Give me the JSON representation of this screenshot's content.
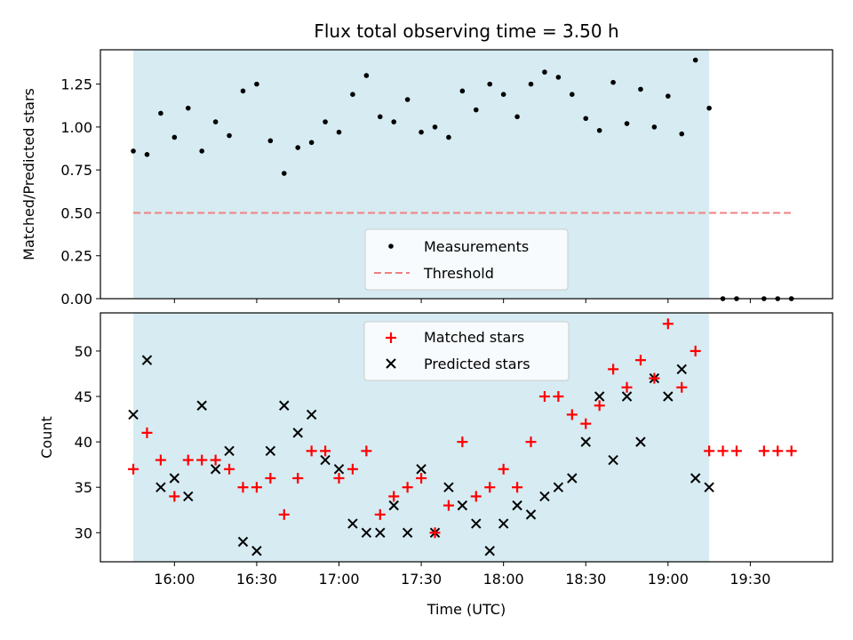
{
  "chart_data": [
    {
      "type": "scatter",
      "title": "Flux total observing time = 3.50 h",
      "xlabel": "",
      "ylabel": "Matched/Predicted stars",
      "ylim": [
        0,
        1.45
      ],
      "yticks": [
        "0.00",
        "0.25",
        "0.50",
        "0.75",
        "1.00",
        "1.25"
      ],
      "shaded_span": [
        "15:45",
        "19:15"
      ],
      "shade_color": "#add8e6",
      "legend": {
        "position": "lower-center",
        "entries": [
          "Measurements",
          "Threshold"
        ]
      },
      "series": [
        {
          "name": "Measurements",
          "marker": "dot",
          "color": "#000000",
          "points": [
            [
              "15:45",
              0.86
            ],
            [
              "15:50",
              0.84
            ],
            [
              "15:55",
              1.08
            ],
            [
              "16:00",
              0.94
            ],
            [
              "16:05",
              1.11
            ],
            [
              "16:10",
              0.86
            ],
            [
              "16:15",
              1.03
            ],
            [
              "16:20",
              0.95
            ],
            [
              "16:25",
              1.21
            ],
            [
              "16:30",
              1.25
            ],
            [
              "16:35",
              0.92
            ],
            [
              "16:40",
              0.73
            ],
            [
              "16:45",
              0.88
            ],
            [
              "16:50",
              0.91
            ],
            [
              "16:55",
              1.03
            ],
            [
              "17:00",
              0.97
            ],
            [
              "17:05",
              1.19
            ],
            [
              "17:10",
              1.3
            ],
            [
              "17:15",
              1.06
            ],
            [
              "17:20",
              1.03
            ],
            [
              "17:25",
              1.16
            ],
            [
              "17:30",
              0.97
            ],
            [
              "17:35",
              1.0
            ],
            [
              "17:40",
              0.94
            ],
            [
              "17:45",
              1.21
            ],
            [
              "17:50",
              1.1
            ],
            [
              "17:55",
              1.25
            ],
            [
              "18:00",
              1.19
            ],
            [
              "18:05",
              1.06
            ],
            [
              "18:10",
              1.25
            ],
            [
              "18:15",
              1.32
            ],
            [
              "18:20",
              1.29
            ],
            [
              "18:25",
              1.19
            ],
            [
              "18:30",
              1.05
            ],
            [
              "18:35",
              0.98
            ],
            [
              "18:40",
              1.26
            ],
            [
              "18:45",
              1.02
            ],
            [
              "18:50",
              1.22
            ],
            [
              "18:55",
              1.0
            ],
            [
              "19:00",
              1.18
            ],
            [
              "19:05",
              0.96
            ],
            [
              "19:10",
              1.39
            ],
            [
              "19:15",
              1.11
            ],
            [
              "19:20",
              0.0
            ],
            [
              "19:25",
              0.0
            ],
            [
              "19:35",
              0.0
            ],
            [
              "19:40",
              0.0
            ],
            [
              "19:45",
              0.0
            ]
          ]
        },
        {
          "name": "Threshold",
          "style": "dashed",
          "color": "#f08080",
          "x": [
            "15:45",
            "19:45"
          ],
          "y": 0.5
        }
      ]
    },
    {
      "type": "scatter",
      "title": "",
      "xlabel": "Time (UTC)",
      "ylabel": "Count",
      "ylim": [
        26.8,
        54.2
      ],
      "yticks": [
        "30",
        "35",
        "40",
        "45",
        "50"
      ],
      "xticks": [
        "16:00",
        "16:30",
        "17:00",
        "17:30",
        "18:00",
        "18:30",
        "19:00",
        "19:30"
      ],
      "xlim": [
        "15:33",
        "20:00"
      ],
      "shaded_span": [
        "15:45",
        "19:15"
      ],
      "legend": {
        "position": "top-center",
        "entries": [
          "Matched stars",
          "Predicted stars"
        ]
      },
      "series": [
        {
          "name": "Matched stars",
          "marker": "plus",
          "color": "#ff0000",
          "points": [
            [
              "15:45",
              37
            ],
            [
              "15:50",
              41
            ],
            [
              "15:55",
              38
            ],
            [
              "16:00",
              34
            ],
            [
              "16:05",
              38
            ],
            [
              "16:10",
              38
            ],
            [
              "16:15",
              38
            ],
            [
              "16:20",
              37
            ],
            [
              "16:25",
              35
            ],
            [
              "16:30",
              35
            ],
            [
              "16:35",
              36
            ],
            [
              "16:40",
              32
            ],
            [
              "16:45",
              36
            ],
            [
              "16:50",
              39
            ],
            [
              "16:55",
              39
            ],
            [
              "17:00",
              36
            ],
            [
              "17:05",
              37
            ],
            [
              "17:10",
              39
            ],
            [
              "17:15",
              32
            ],
            [
              "17:20",
              34
            ],
            [
              "17:25",
              35
            ],
            [
              "17:30",
              36
            ],
            [
              "17:35",
              30
            ],
            [
              "17:40",
              33
            ],
            [
              "17:45",
              40
            ],
            [
              "17:50",
              34
            ],
            [
              "17:55",
              35
            ],
            [
              "18:00",
              37
            ],
            [
              "18:05",
              35
            ],
            [
              "18:10",
              40
            ],
            [
              "18:15",
              45
            ],
            [
              "18:20",
              45
            ],
            [
              "18:25",
              43
            ],
            [
              "18:30",
              42
            ],
            [
              "18:35",
              44
            ],
            [
              "18:40",
              48
            ],
            [
              "18:45",
              46
            ],
            [
              "18:50",
              49
            ],
            [
              "18:55",
              47
            ],
            [
              "19:00",
              53
            ],
            [
              "19:05",
              46
            ],
            [
              "19:10",
              50
            ],
            [
              "19:15",
              39
            ],
            [
              "19:20",
              39
            ],
            [
              "19:25",
              39
            ],
            [
              "19:35",
              39
            ],
            [
              "19:40",
              39
            ],
            [
              "19:45",
              39
            ]
          ]
        },
        {
          "name": "Predicted stars",
          "marker": "x",
          "color": "#000000",
          "points": [
            [
              "15:45",
              43
            ],
            [
              "15:50",
              49
            ],
            [
              "15:55",
              35
            ],
            [
              "16:00",
              36
            ],
            [
              "16:05",
              34
            ],
            [
              "16:10",
              44
            ],
            [
              "16:15",
              37
            ],
            [
              "16:20",
              39
            ],
            [
              "16:25",
              29
            ],
            [
              "16:30",
              28
            ],
            [
              "16:35",
              39
            ],
            [
              "16:40",
              44
            ],
            [
              "16:45",
              41
            ],
            [
              "16:50",
              43
            ],
            [
              "16:55",
              38
            ],
            [
              "17:00",
              37
            ],
            [
              "17:05",
              31
            ],
            [
              "17:10",
              30
            ],
            [
              "17:15",
              30
            ],
            [
              "17:20",
              33
            ],
            [
              "17:25",
              30
            ],
            [
              "17:30",
              37
            ],
            [
              "17:35",
              30
            ],
            [
              "17:40",
              35
            ],
            [
              "17:45",
              33
            ],
            [
              "17:50",
              31
            ],
            [
              "17:55",
              28
            ],
            [
              "18:00",
              31
            ],
            [
              "18:05",
              33
            ],
            [
              "18:10",
              32
            ],
            [
              "18:15",
              34
            ],
            [
              "18:20",
              35
            ],
            [
              "18:25",
              36
            ],
            [
              "18:30",
              40
            ],
            [
              "18:35",
              45
            ],
            [
              "18:40",
              38
            ],
            [
              "18:45",
              45
            ],
            [
              "18:50",
              40
            ],
            [
              "18:55",
              47
            ],
            [
              "19:00",
              45
            ],
            [
              "19:05",
              48
            ],
            [
              "19:10",
              36
            ],
            [
              "19:15",
              35
            ]
          ]
        }
      ]
    }
  ]
}
